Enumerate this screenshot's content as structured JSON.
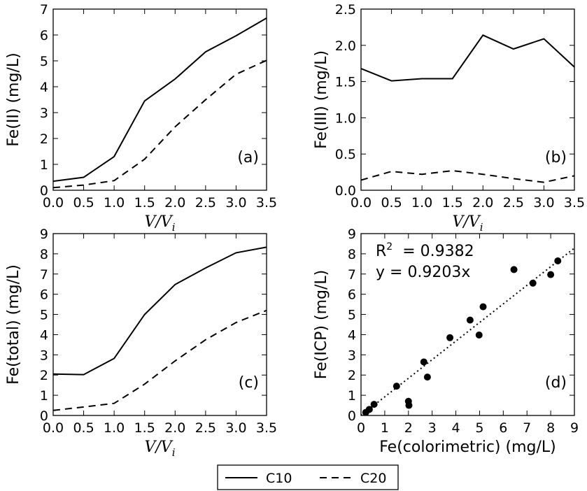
{
  "chart_data": [
    {
      "id": "a",
      "type": "line",
      "panel_label": "(a)",
      "ylabel": "Fe(II) (mg/L)",
      "xlabel": "V/Vi",
      "xlabel_main": "V/V",
      "xlabel_sub": "i",
      "xlim": [
        0,
        3.5
      ],
      "ylim": [
        0,
        7
      ],
      "xticks": [
        "0.0",
        "0.5",
        "1.0",
        "1.5",
        "2.0",
        "2.5",
        "3.0",
        "3.5"
      ],
      "yticks": [
        "0",
        "1",
        "2",
        "3",
        "4",
        "5",
        "6",
        "7"
      ],
      "series": [
        {
          "name": "C10",
          "style": "solid",
          "x": [
            0,
            0.5,
            1.0,
            1.5,
            2.0,
            2.5,
            3.0,
            3.5
          ],
          "y": [
            0.35,
            0.5,
            1.3,
            3.45,
            4.3,
            5.35,
            5.97,
            6.65
          ]
        },
        {
          "name": "C20",
          "style": "dashed",
          "x": [
            0,
            0.5,
            1.0,
            1.5,
            2.0,
            2.5,
            3.0,
            3.5
          ],
          "y": [
            0.1,
            0.2,
            0.37,
            1.2,
            2.45,
            3.5,
            4.48,
            5.02
          ]
        }
      ]
    },
    {
      "id": "b",
      "type": "line",
      "panel_label": "(b)",
      "ylabel": "Fe(III) (mg/L)",
      "xlabel": "V/Vi",
      "xlabel_main": "V/V",
      "xlabel_sub": "i",
      "xlim": [
        0,
        3.5
      ],
      "ylim": [
        0,
        2.5
      ],
      "xticks": [
        "0.0",
        "0.5",
        "1.0",
        "1.5",
        "2.0",
        "2.5",
        "3.0",
        "3.5"
      ],
      "yticks": [
        "0.0",
        "0.5",
        "1.0",
        "1.5",
        "2.0",
        "2.5"
      ],
      "series": [
        {
          "name": "C10",
          "style": "solid",
          "x": [
            0,
            0.5,
            1.0,
            1.5,
            2.0,
            2.5,
            3.0,
            3.5
          ],
          "y": [
            1.68,
            1.51,
            1.54,
            1.54,
            2.14,
            1.95,
            2.09,
            1.7
          ]
        },
        {
          "name": "C20",
          "style": "dashed",
          "x": [
            0,
            0.5,
            1.0,
            1.5,
            2.0,
            2.5,
            3.0,
            3.5
          ],
          "y": [
            0.14,
            0.26,
            0.22,
            0.27,
            0.22,
            0.16,
            0.11,
            0.2
          ]
        }
      ]
    },
    {
      "id": "c",
      "type": "line",
      "panel_label": "(c)",
      "ylabel": "Fe(total) (mg/L)",
      "xlabel": "V/Vi",
      "xlabel_main": "V/V",
      "xlabel_sub": "i",
      "xlim": [
        0,
        3.5
      ],
      "ylim": [
        0,
        9
      ],
      "xticks": [
        "0.0",
        "0.5",
        "1.0",
        "1.5",
        "2.0",
        "2.5",
        "3.0",
        "3.5"
      ],
      "yticks": [
        "0",
        "1",
        "2",
        "3",
        "4",
        "5",
        "6",
        "7",
        "8",
        "9"
      ],
      "series": [
        {
          "name": "C10",
          "style": "solid",
          "x": [
            0,
            0.5,
            1.0,
            1.5,
            2.0,
            2.5,
            3.0,
            3.5
          ],
          "y": [
            2.05,
            2.02,
            2.82,
            5.0,
            6.48,
            7.3,
            8.05,
            8.33
          ]
        },
        {
          "name": "C20",
          "style": "dashed",
          "x": [
            0,
            0.5,
            1.0,
            1.5,
            2.0,
            2.5,
            3.0,
            3.5
          ],
          "y": [
            0.25,
            0.42,
            0.6,
            1.55,
            2.7,
            3.75,
            4.6,
            5.2
          ]
        }
      ]
    },
    {
      "id": "d",
      "type": "scatter",
      "panel_label": "(d)",
      "ylabel": "Fe(ICP) (mg/L)",
      "xlabel": "Fe(colorimetric) (mg/L)",
      "xlim": [
        0,
        9
      ],
      "ylim": [
        0,
        9
      ],
      "xticks": [
        "0",
        "1",
        "2",
        "3",
        "4",
        "5",
        "6",
        "7",
        "8",
        "9"
      ],
      "yticks": [
        "0",
        "1",
        "2",
        "3",
        "4",
        "5",
        "6",
        "7",
        "8",
        "9"
      ],
      "annotation_r2_label": "R",
      "annotation_r2_exp": "2",
      "annotation_r2_value": "= 0.9382",
      "annotation_eq": "y = 0.9203x",
      "fit_slope": 0.9203,
      "points": [
        {
          "x": 0.2,
          "y": 0.15
        },
        {
          "x": 0.35,
          "y": 0.3
        },
        {
          "x": 0.55,
          "y": 0.55
        },
        {
          "x": 1.5,
          "y": 1.45
        },
        {
          "x": 2.0,
          "y": 0.7
        },
        {
          "x": 2.02,
          "y": 0.5
        },
        {
          "x": 2.65,
          "y": 2.65
        },
        {
          "x": 2.8,
          "y": 1.9
        },
        {
          "x": 3.75,
          "y": 3.85
        },
        {
          "x": 4.6,
          "y": 4.72
        },
        {
          "x": 4.98,
          "y": 3.98
        },
        {
          "x": 5.15,
          "y": 5.38
        },
        {
          "x": 6.45,
          "y": 7.22
        },
        {
          "x": 7.25,
          "y": 6.55
        },
        {
          "x": 8.0,
          "y": 6.97
        },
        {
          "x": 8.3,
          "y": 7.65
        }
      ]
    }
  ],
  "legend": {
    "entries": [
      {
        "name": "C10",
        "style": "solid"
      },
      {
        "name": "C20",
        "style": "dashed"
      }
    ]
  }
}
